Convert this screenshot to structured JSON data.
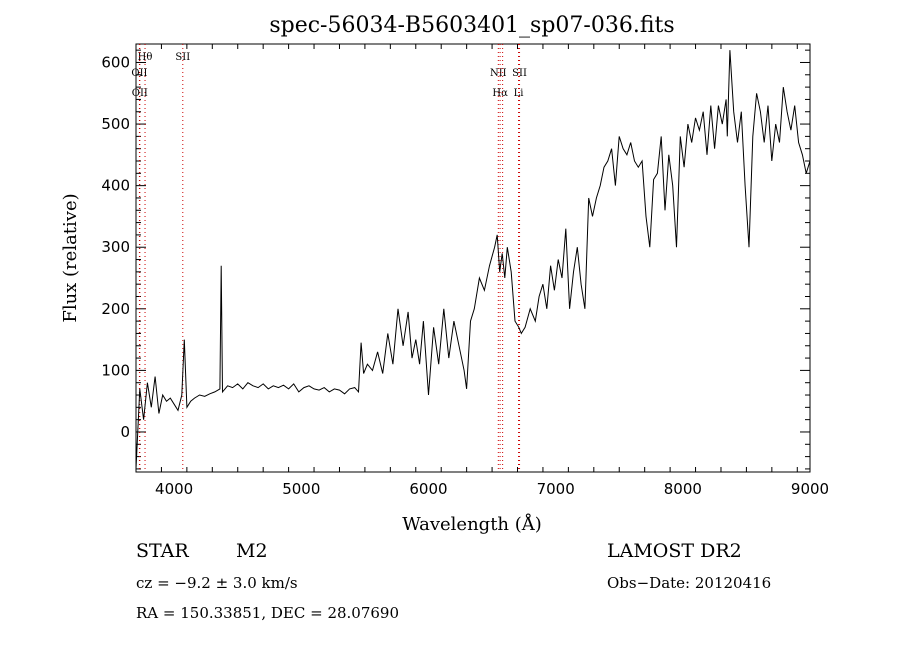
{
  "chart_data": {
    "type": "line",
    "title": "spec-56034-B5603401_sp07-036.fits",
    "xlabel": "Wavelength (Å)",
    "ylabel": "Flux (relative)",
    "xlim": [
      3700,
      9000
    ],
    "ylim": [
      -65,
      630
    ],
    "xticks": [
      4000,
      5000,
      6000,
      7000,
      8000,
      9000
    ],
    "yticks": [
      0,
      100,
      200,
      300,
      400,
      500,
      600
    ],
    "series": [
      {
        "x": [
          3700,
          3730,
          3760,
          3790,
          3820,
          3850,
          3880,
          3910,
          3940,
          3970,
          4000,
          4030,
          4060,
          4080,
          4100,
          4130,
          4160,
          4200,
          4240,
          4280,
          4320,
          4360,
          4370,
          4380,
          4420,
          4460,
          4500,
          4540,
          4580,
          4620,
          4660,
          4700,
          4740,
          4780,
          4820,
          4860,
          4900,
          4940,
          4980,
          5020,
          5060,
          5100,
          5140,
          5180,
          5220,
          5260,
          5300,
          5340,
          5380,
          5420,
          5450,
          5470,
          5490,
          5520,
          5560,
          5600,
          5640,
          5680,
          5720,
          5760,
          5800,
          5840,
          5870,
          5900,
          5930,
          5960,
          6000,
          6040,
          6080,
          6120,
          6160,
          6200,
          6240,
          6280,
          6300,
          6330,
          6360,
          6400,
          6440,
          6480,
          6520,
          6540,
          6560,
          6580,
          6600,
          6620,
          6650,
          6680,
          6710,
          6730,
          6760,
          6800,
          6840,
          6870,
          6900,
          6930,
          6960,
          6990,
          7020,
          7050,
          7080,
          7110,
          7140,
          7170,
          7200,
          7230,
          7260,
          7290,
          7320,
          7350,
          7380,
          7410,
          7440,
          7470,
          7500,
          7530,
          7560,
          7590,
          7620,
          7650,
          7680,
          7710,
          7740,
          7770,
          7800,
          7830,
          7860,
          7890,
          7920,
          7950,
          7980,
          8010,
          8040,
          8070,
          8100,
          8130,
          8160,
          8190,
          8220,
          8250,
          8280,
          8310,
          8340,
          8350,
          8370,
          8400,
          8430,
          8460,
          8490,
          8520,
          8550,
          8580,
          8610,
          8640,
          8670,
          8700,
          8730,
          8760,
          8790,
          8820,
          8850,
          8880,
          8910,
          8940,
          8970,
          9000
        ],
        "y": [
          -60,
          70,
          20,
          80,
          40,
          90,
          30,
          60,
          50,
          55,
          45,
          35,
          60,
          150,
          40,
          50,
          55,
          60,
          58,
          62,
          65,
          70,
          270,
          65,
          75,
          72,
          78,
          70,
          80,
          75,
          72,
          78,
          70,
          75,
          72,
          76,
          70,
          78,
          65,
          72,
          75,
          70,
          68,
          72,
          65,
          70,
          68,
          62,
          70,
          72,
          65,
          145,
          95,
          110,
          100,
          130,
          95,
          160,
          110,
          200,
          140,
          195,
          120,
          150,
          110,
          180,
          60,
          170,
          110,
          200,
          120,
          180,
          140,
          100,
          70,
          180,
          200,
          250,
          230,
          270,
          300,
          320,
          260,
          290,
          250,
          300,
          260,
          180,
          170,
          160,
          170,
          200,
          180,
          220,
          240,
          200,
          270,
          230,
          280,
          250,
          330,
          200,
          260,
          300,
          240,
          200,
          380,
          350,
          380,
          400,
          430,
          440,
          460,
          400,
          480,
          460,
          450,
          470,
          440,
          430,
          440,
          350,
          300,
          410,
          420,
          480,
          360,
          450,
          400,
          300,
          480,
          430,
          500,
          470,
          510,
          490,
          520,
          450,
          530,
          460,
          530,
          500,
          540,
          480,
          620,
          520,
          470,
          520,
          400,
          300,
          480,
          550,
          520,
          470,
          530,
          440,
          500,
          470,
          560,
          520,
          490,
          530,
          470,
          450,
          420,
          440
        ]
      }
    ],
    "lines": [
      {
        "x": 3771,
        "labels": [
          "Hθ"
        ]
      },
      {
        "x": 3727,
        "labels": [
          "OII"
        ]
      },
      {
        "x": 3730,
        "labels": [
          "OII"
        ]
      },
      {
        "x": 4068,
        "labels": [
          "SII"
        ]
      },
      {
        "x": 6549,
        "labels": [
          "NII"
        ]
      },
      {
        "x": 6563,
        "labels": [
          "Hα"
        ]
      },
      {
        "x": 6583,
        "labels": []
      },
      {
        "x": 6716,
        "labels": [
          "SII"
        ]
      },
      {
        "x": 6708,
        "labels": [
          "Li"
        ]
      }
    ],
    "grid": false,
    "legend": "none",
    "line_color": "#000000",
    "marker_line_color": "#cc0000"
  },
  "info": {
    "object_class": "STAR",
    "subclass": "M2",
    "release": "LAMOST DR2",
    "cz": "cz = −9.2 ± 3.0 km/s",
    "obs_date": "Obs−Date: 20120416",
    "coords": "RA = 150.33851, DEC =  28.07690"
  }
}
